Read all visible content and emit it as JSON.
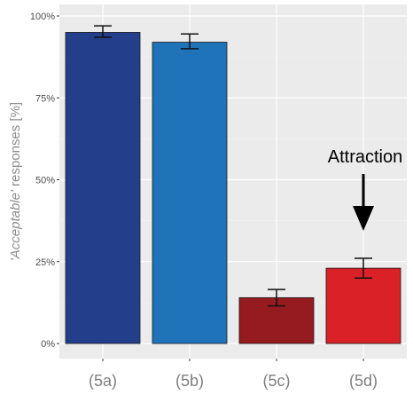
{
  "chart_data": {
    "type": "bar",
    "categories": [
      "(5a)",
      "(5b)",
      "(5c)",
      "(5d)"
    ],
    "values": [
      95,
      92,
      14,
      23
    ],
    "errors": [
      [
        93.5,
        97
      ],
      [
        90,
        94.5
      ],
      [
        11.5,
        16.5
      ],
      [
        20,
        26
      ]
    ],
    "colors": [
      "#233f8b",
      "#1f73b8",
      "#961b20",
      "#d92127"
    ],
    "ylabel": {
      "italic_part": "'Acceptable'",
      "rest": " responses [%]"
    },
    "ylim": [
      -5,
      102
    ],
    "yticks": [
      0,
      25,
      50,
      75,
      100
    ],
    "ytick_labels": [
      "0%",
      "25%",
      "50%",
      "75%",
      "100%"
    ],
    "grid": true,
    "panel_background": "#ebebeb",
    "annotation": {
      "text": "Attraction",
      "target": "(5d)"
    }
  }
}
